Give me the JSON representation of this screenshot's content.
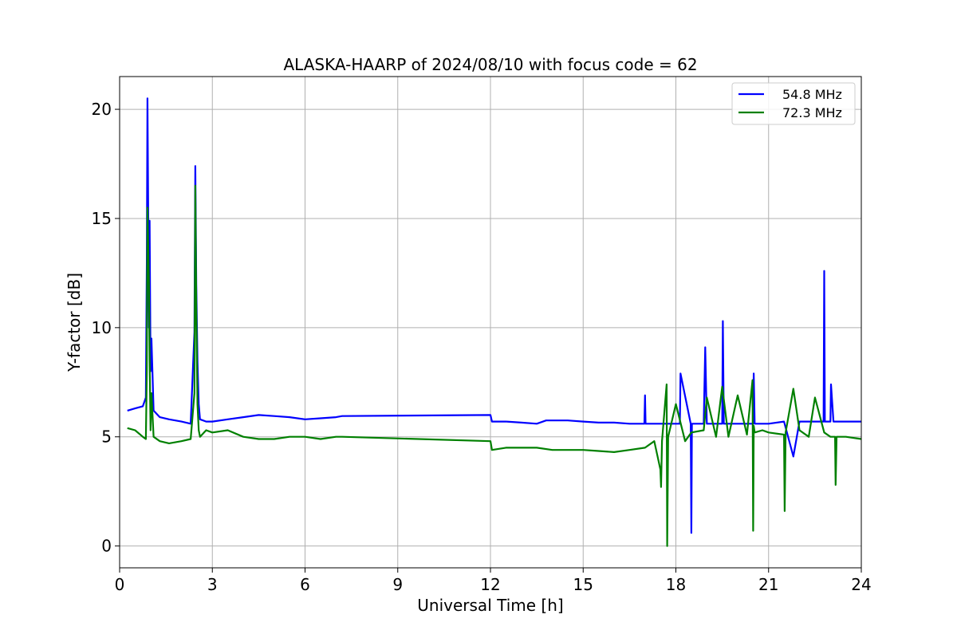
{
  "chart_data": {
    "type": "line",
    "title": "ALASKA-HAARP of 2024/08/10 with focus code = 62",
    "xlabel": "Universal Time [h]",
    "ylabel": "Y-factor [dB]",
    "xlim": [
      0,
      24
    ],
    "ylim": [
      -1,
      21.5
    ],
    "xticks": [
      0,
      3,
      6,
      9,
      12,
      15,
      18,
      21,
      24
    ],
    "yticks": [
      0,
      5,
      10,
      15,
      20
    ],
    "grid": true,
    "legend_position": "top-right",
    "series": [
      {
        "name": "54.8 MHz",
        "color": "#0000ff",
        "x": [
          0.25,
          0.5,
          0.75,
          0.85,
          0.88,
          0.9,
          0.95,
          0.97,
          1.0,
          1.03,
          1.1,
          1.3,
          1.6,
          2.0,
          2.3,
          2.42,
          2.45,
          2.48,
          2.52,
          2.56,
          2.6,
          2.8,
          3.0,
          3.5,
          4.0,
          4.5,
          5.0,
          5.5,
          6.0,
          6.5,
          7.0,
          7.2,
          12.0,
          12.05,
          12.5,
          13.0,
          13.5,
          13.8,
          14.0,
          14.5,
          15.0,
          15.5,
          16.0,
          16.5,
          16.98,
          17.0,
          17.02,
          17.5,
          18.0,
          18.13,
          18.15,
          18.48,
          18.5,
          18.52,
          18.9,
          18.95,
          19.0,
          19.5,
          19.52,
          19.55,
          20.0,
          20.5,
          20.52,
          20.55,
          21.0,
          21.5,
          21.8,
          22.0,
          22.5,
          22.78,
          22.8,
          22.82,
          23.0,
          23.02,
          23.1,
          23.5,
          24.0
        ],
        "y": [
          6.2,
          6.3,
          6.4,
          6.8,
          13.0,
          20.5,
          10.0,
          14.9,
          8.0,
          9.5,
          6.2,
          5.9,
          5.8,
          5.7,
          5.6,
          9.8,
          17.4,
          12.0,
          8.5,
          6.5,
          5.8,
          5.7,
          5.7,
          5.8,
          5.9,
          6.0,
          5.95,
          5.9,
          5.8,
          5.85,
          5.9,
          5.95,
          6.0,
          5.7,
          5.7,
          5.65,
          5.6,
          5.75,
          5.75,
          5.75,
          5.7,
          5.65,
          5.65,
          5.6,
          5.6,
          6.9,
          5.6,
          5.6,
          5.6,
          5.6,
          7.9,
          5.6,
          0.6,
          5.6,
          5.6,
          9.1,
          5.6,
          5.6,
          10.3,
          5.6,
          5.6,
          5.6,
          7.9,
          5.6,
          5.6,
          5.7,
          4.1,
          5.7,
          5.7,
          5.7,
          12.6,
          5.7,
          5.7,
          7.4,
          5.7,
          5.7,
          5.7
        ]
      },
      {
        "name": "72.3 MHz",
        "color": "#008000",
        "x": [
          0.25,
          0.5,
          0.75,
          0.85,
          0.88,
          0.9,
          0.95,
          0.97,
          1.0,
          1.03,
          1.1,
          1.3,
          1.6,
          2.0,
          2.3,
          2.42,
          2.45,
          2.48,
          2.52,
          2.56,
          2.6,
          2.8,
          3.0,
          3.5,
          4.0,
          4.5,
          5.0,
          5.5,
          6.0,
          6.5,
          7.0,
          7.2,
          12.0,
          12.05,
          12.5,
          13.0,
          13.5,
          14.0,
          14.5,
          15.0,
          15.5,
          16.0,
          16.5,
          17.0,
          17.3,
          17.5,
          17.52,
          17.55,
          17.7,
          17.72,
          17.75,
          18.0,
          18.3,
          18.5,
          18.9,
          19.0,
          19.3,
          19.5,
          19.7,
          20.0,
          20.3,
          20.48,
          20.5,
          20.52,
          20.55,
          20.8,
          21.0,
          21.5,
          21.52,
          21.55,
          21.8,
          22.0,
          22.3,
          22.5,
          22.8,
          23.0,
          23.15,
          23.17,
          23.2,
          23.5,
          24.0
        ],
        "y": [
          5.4,
          5.3,
          5.0,
          4.9,
          8.0,
          15.5,
          12.0,
          8.5,
          5.3,
          7.0,
          5.0,
          4.8,
          4.7,
          4.8,
          4.9,
          7.0,
          16.5,
          11.0,
          6.5,
          5.3,
          5.0,
          5.3,
          5.2,
          5.3,
          5.0,
          4.9,
          4.9,
          5.0,
          5.0,
          4.9,
          5.0,
          5.0,
          4.8,
          4.4,
          4.5,
          4.5,
          4.5,
          4.4,
          4.4,
          4.4,
          4.35,
          4.3,
          4.4,
          4.5,
          4.8,
          3.5,
          2.7,
          4.8,
          7.4,
          0.0,
          5.0,
          6.5,
          4.8,
          5.2,
          5.3,
          6.8,
          5.0,
          7.3,
          5.0,
          6.9,
          5.1,
          7.6,
          0.7,
          5.5,
          5.2,
          5.3,
          5.2,
          5.1,
          1.6,
          5.2,
          7.2,
          5.3,
          5.0,
          6.8,
          5.2,
          5.0,
          5.0,
          2.8,
          5.0,
          5.0,
          4.9
        ]
      }
    ]
  }
}
